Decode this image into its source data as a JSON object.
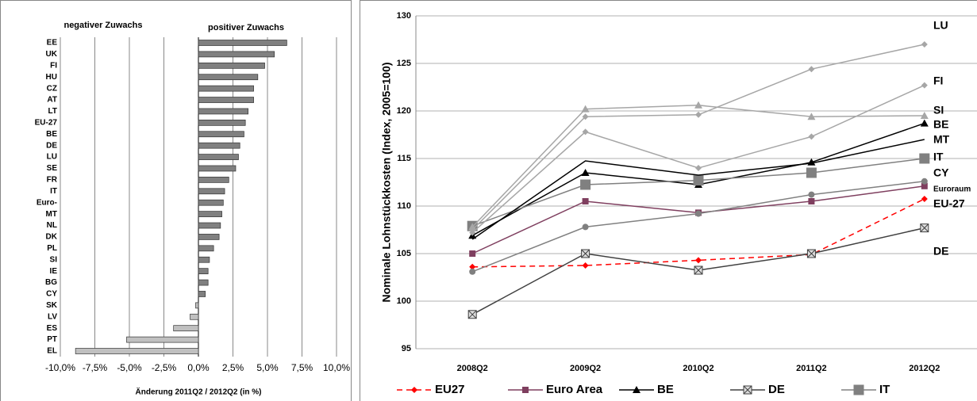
{
  "chart_data": [
    {
      "type": "hbar",
      "header_left": "negativer Zuwachs",
      "header_right": "positiver Zuwachs",
      "x_label": "Änderung 2011Q2 / 2012Q2 (in %)",
      "categories": [
        "EE",
        "UK",
        "FI",
        "HU",
        "CZ",
        "AT",
        "LT",
        "EU-27",
        "BE",
        "DE",
        "LU",
        "SE",
        "FR",
        "IT",
        "Euro-",
        "MT",
        "NL",
        "DK",
        "PL",
        "SI",
        "IE",
        "BG",
        "CY",
        "SK",
        "LV",
        "ES",
        "PT",
        "EL"
      ],
      "values": [
        6.4,
        5.5,
        4.8,
        4.3,
        4.0,
        4.0,
        3.6,
        3.4,
        3.3,
        3.0,
        2.9,
        2.7,
        2.2,
        1.9,
        1.8,
        1.7,
        1.6,
        1.5,
        1.1,
        0.8,
        0.7,
        0.7,
        0.5,
        -0.2,
        -0.6,
        -1.8,
        -5.2,
        -8.9
      ],
      "color_positive": "#808080",
      "color_negative": "#c0c0c0",
      "xlim": [
        -10,
        10
      ],
      "xticks": [
        {
          "value": -10,
          "label": "-10,0%"
        },
        {
          "value": -7.5,
          "label": "-7,5%"
        },
        {
          "value": -5,
          "label": "-5,0%"
        },
        {
          "value": -2.5,
          "label": "-2,5%"
        },
        {
          "value": 0,
          "label": "0,0%"
        },
        {
          "value": 2.5,
          "label": "2,5%"
        },
        {
          "value": 5,
          "label": "5,0%"
        },
        {
          "value": 7.5,
          "label": "7,5%"
        },
        {
          "value": 10,
          "label": "10,0%"
        }
      ],
      "grid": true
    },
    {
      "type": "line",
      "y_label": "Nominale Lohnstückkosten (Index, 2005=100)",
      "categories": [
        "2008Q2",
        "2009Q2",
        "2010Q2",
        "2011Q2",
        "2012Q2"
      ],
      "ylim": [
        95,
        130
      ],
      "yticks": [
        95,
        100,
        105,
        110,
        115,
        120,
        125,
        130
      ],
      "grid": true,
      "series": [
        {
          "name": "EU27",
          "color": "#ff0000",
          "marker": "diamond",
          "dash": true,
          "end_label": "EU-27",
          "end_label_color": "#c0502a",
          "values": [
            103.6,
            103.75,
            104.3,
            104.9,
            110.75
          ]
        },
        {
          "name": "Euro Area",
          "color": "#7f3f5f",
          "marker": "square",
          "end_label": "Euroraum",
          "end_label_color": "#c0502a",
          "values": [
            105.0,
            110.5,
            109.3,
            110.5,
            112.1
          ]
        },
        {
          "name": "BE",
          "color": "#000000",
          "marker": "triangle",
          "end_label": "BE",
          "end_label_color": "#000000",
          "values": [
            106.9,
            113.5,
            112.25,
            114.6,
            118.7
          ]
        },
        {
          "name": "DE",
          "color": "#404040",
          "marker": "xsquare",
          "end_label": "DE",
          "end_label_color": "#000000",
          "values": [
            98.6,
            105.0,
            103.25,
            105.0,
            107.7
          ]
        },
        {
          "name": "IT",
          "color": "#808080",
          "marker": "bigsquare",
          "end_label": "IT",
          "end_label_color": "#000000",
          "values": [
            107.9,
            112.25,
            112.7,
            113.5,
            115.0
          ]
        },
        {
          "name": "CY",
          "color": "#808080",
          "marker": "circle",
          "end_label": "CY",
          "end_label_color": "#000000",
          "values": [
            103.1,
            107.8,
            109.2,
            111.2,
            112.6
          ]
        },
        {
          "name": "LU",
          "color": "#a6a6a6",
          "marker": "diamond",
          "end_label": "LU",
          "end_label_color": "#000000",
          "values": [
            107.5,
            119.4,
            119.6,
            124.4,
            127.0
          ]
        },
        {
          "name": "MT",
          "color": "#000000",
          "marker": "none",
          "end_label": "MT",
          "end_label_color": "#000000",
          "values": [
            106.5,
            114.75,
            113.25,
            114.5,
            117.0
          ]
        },
        {
          "name": "SI",
          "color": "#a6a6a6",
          "marker": "triangle",
          "end_label": "SI",
          "end_label_color": "#000000",
          "values": [
            107.8,
            120.2,
            120.6,
            119.4,
            119.5
          ]
        },
        {
          "name": "FI",
          "color": "#a6a6a6",
          "marker": "diamond",
          "end_label": "FI",
          "end_label_color": "#000000",
          "values": [
            107.2,
            117.8,
            114.0,
            117.3,
            122.7
          ]
        }
      ]
    }
  ]
}
